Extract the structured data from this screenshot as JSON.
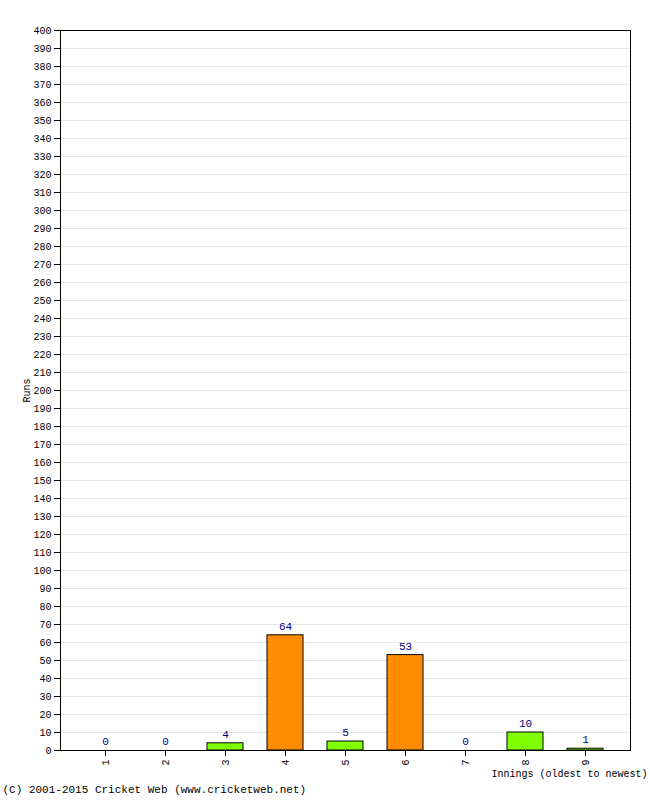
{
  "chart_data": {
    "type": "bar",
    "categories": [
      "1",
      "2",
      "3",
      "4",
      "5",
      "6",
      "7",
      "8",
      "9"
    ],
    "values": [
      0,
      0,
      4,
      64,
      5,
      53,
      0,
      10,
      1
    ],
    "colors": [
      "#80ff00",
      "#80ff00",
      "#80ff00",
      "#ff8c00",
      "#80ff00",
      "#ff8c00",
      "#80ff00",
      "#80ff00",
      "#80ff00"
    ],
    "x_label": "Innings (oldest to newest)",
    "y_label": "Runs",
    "caption": "(C) 2001-2015 Cricket Web (www.cricketweb.net)",
    "ylim": [
      0,
      400
    ],
    "yticks": [
      0,
      10,
      20,
      30,
      40,
      50,
      60,
      70,
      80,
      90,
      100,
      110,
      120,
      130,
      140,
      150,
      160,
      170,
      180,
      190,
      200,
      210,
      220,
      230,
      240,
      250,
      260,
      270,
      280,
      290,
      300,
      310,
      320,
      330,
      340,
      350,
      360,
      370,
      380,
      390,
      400
    ],
    "grid": true,
    "data_labels": true
  }
}
